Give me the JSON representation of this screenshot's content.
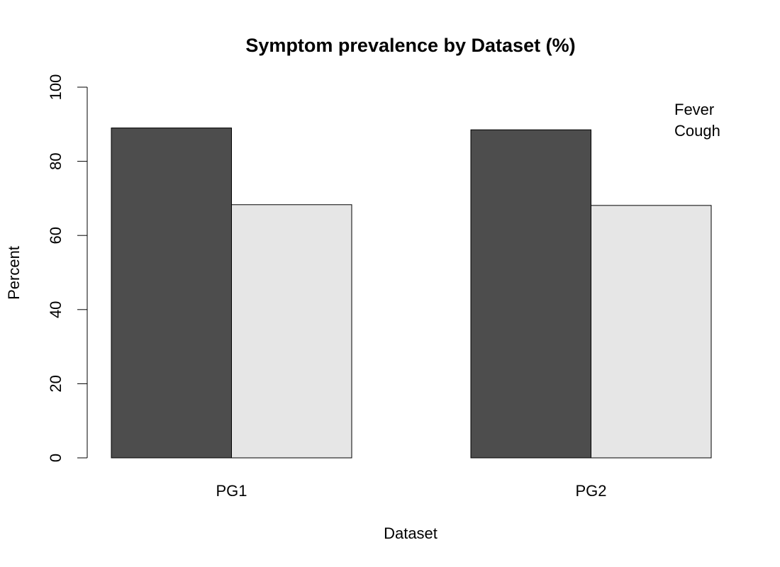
{
  "chart_data": {
    "type": "bar",
    "title": "Symptom prevalence by Dataset (%)",
    "xlabel": "Dataset",
    "ylabel": "Percent",
    "categories": [
      "PG1",
      "PG2"
    ],
    "series": [
      {
        "name": "Fever",
        "values": [
          89.0,
          88.5
        ],
        "color": "#4d4d4d"
      },
      {
        "name": "Cough",
        "values": [
          68.3,
          68.1
        ],
        "color": "#e6e6e6"
      }
    ],
    "ylim": [
      0,
      100
    ],
    "yticks": [
      "0",
      "20",
      "40",
      "60",
      "80",
      "100"
    ],
    "grid": false,
    "legend_position": "top-right",
    "legend_bordered": false
  }
}
